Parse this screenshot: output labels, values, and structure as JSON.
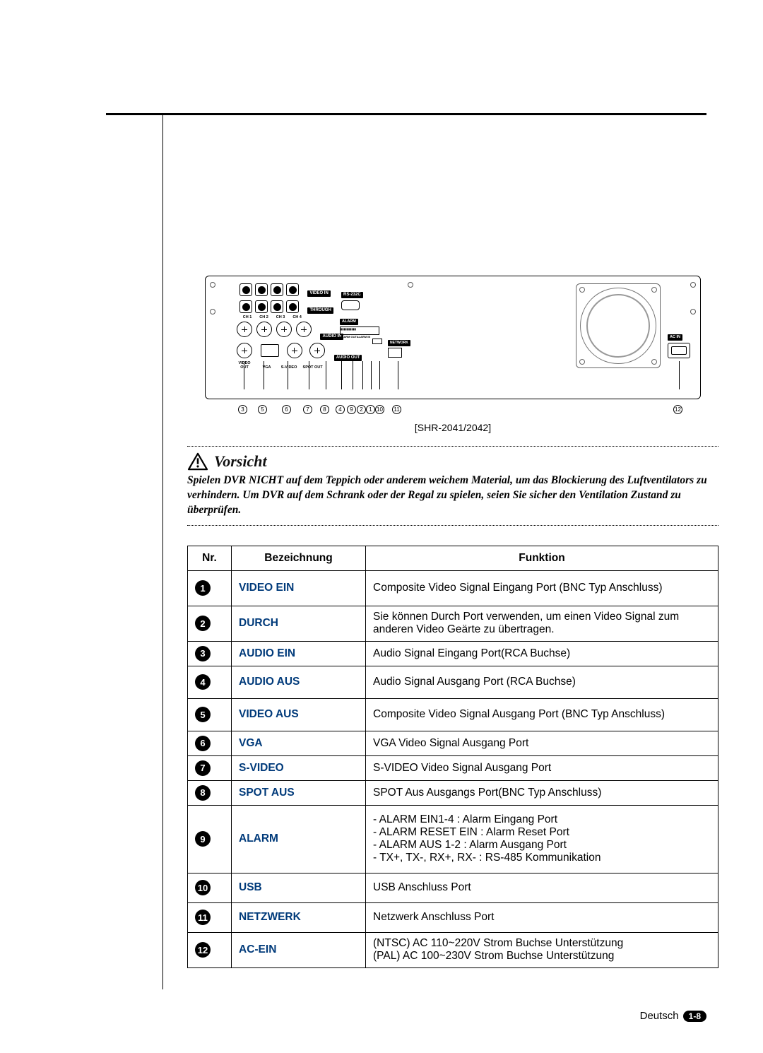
{
  "diagram": {
    "model_label": "[SHR-2041/2042]",
    "panel_labels": {
      "video_in": "VIDEO IN",
      "through": "THROUGH",
      "audio_in": "AUDIO IN",
      "audio_out": "AUDIO OUT",
      "video_out": "VIDEO OUT",
      "vga": "VGA",
      "svideo": "S-VIDEO",
      "spot_out": "SPOT OUT",
      "rs232c": "RS-232C",
      "alarm": "ALARM",
      "network": "NETWORK",
      "ac_in": "AC IN",
      "ch1": "CH 1",
      "ch2": "CH 2",
      "ch3": "CH 3",
      "ch4": "CH 4",
      "alarm_pins": "ALARM OUTALARM IN"
    },
    "callouts": [
      "3",
      "5",
      "6",
      "7",
      "8",
      "4",
      "9",
      "2",
      "1",
      "10",
      "11",
      "12"
    ]
  },
  "caution": {
    "title": "Vorsicht",
    "text": "Spielen DVR NICHT auf dem Teppich oder anderem weichem Material, um das Blockierung des Luftventilators zu verhindern. Um DVR auf dem Schrank oder der Regal zu spielen, seien Sie sicher den Ventilation Zustand zu überprüfen."
  },
  "table": {
    "headers": {
      "nr": "Nr.",
      "name": "Bezeichnung",
      "func": "Funktion"
    },
    "rows": [
      {
        "n": "1",
        "name": "VIDEO EIN",
        "func": "Composite Video Signal Eingang Port (BNC Typ Anschluss)"
      },
      {
        "n": "2",
        "name": "DURCH",
        "func": "Sie können Durch Port verwenden, um einen Video Signal zum anderen Video Geärte zu übertragen."
      },
      {
        "n": "3",
        "name": "AUDIO EIN",
        "func": "Audio Signal Eingang Port(RCA Buchse)"
      },
      {
        "n": "4",
        "name": "AUDIO AUS",
        "func": "Audio Signal Ausgang Port (RCA Buchse)"
      },
      {
        "n": "5",
        "name": "VIDEO AUS",
        "func": "Composite Video Signal Ausgang Port (BNC Typ Anschluss)"
      },
      {
        "n": "6",
        "name": "VGA",
        "func": "VGA Video Signal Ausgang Port"
      },
      {
        "n": "7",
        "name": "S-VIDEO",
        "func": "S-VIDEO Video Signal Ausgang Port"
      },
      {
        "n": "8",
        "name": "SPOT AUS",
        "func": "SPOT Aus Ausgangs Port(BNC Typ Anschluss)"
      },
      {
        "n": "9",
        "name": "ALARM",
        "func": "- ALARM EIN1-4 : Alarm Eingang Port\n- ALARM RESET EIN : Alarm Reset Port\n- ALARM AUS 1-2 : Alarm Ausgang Port\n- TX+, TX-, RX+, RX- : RS-485 Kommunikation"
      },
      {
        "n": "10",
        "name": "USB",
        "func": "USB Anschluss Port"
      },
      {
        "n": "11",
        "name": "NETZWERK",
        "func": "Netzwerk Anschluss Port"
      },
      {
        "n": "12",
        "name": "AC-EIN",
        "func": "(NTSC) AC 110~220V Strom Buchse Unterstützung\n(PAL) AC 100~230V Strom Buchse Unterstützung"
      }
    ]
  },
  "footer": {
    "lang": "Deutsch",
    "page": "1-8"
  },
  "style": {
    "name_color": "#003a7a",
    "table_border": "#000000",
    "text_color": "#000000"
  }
}
